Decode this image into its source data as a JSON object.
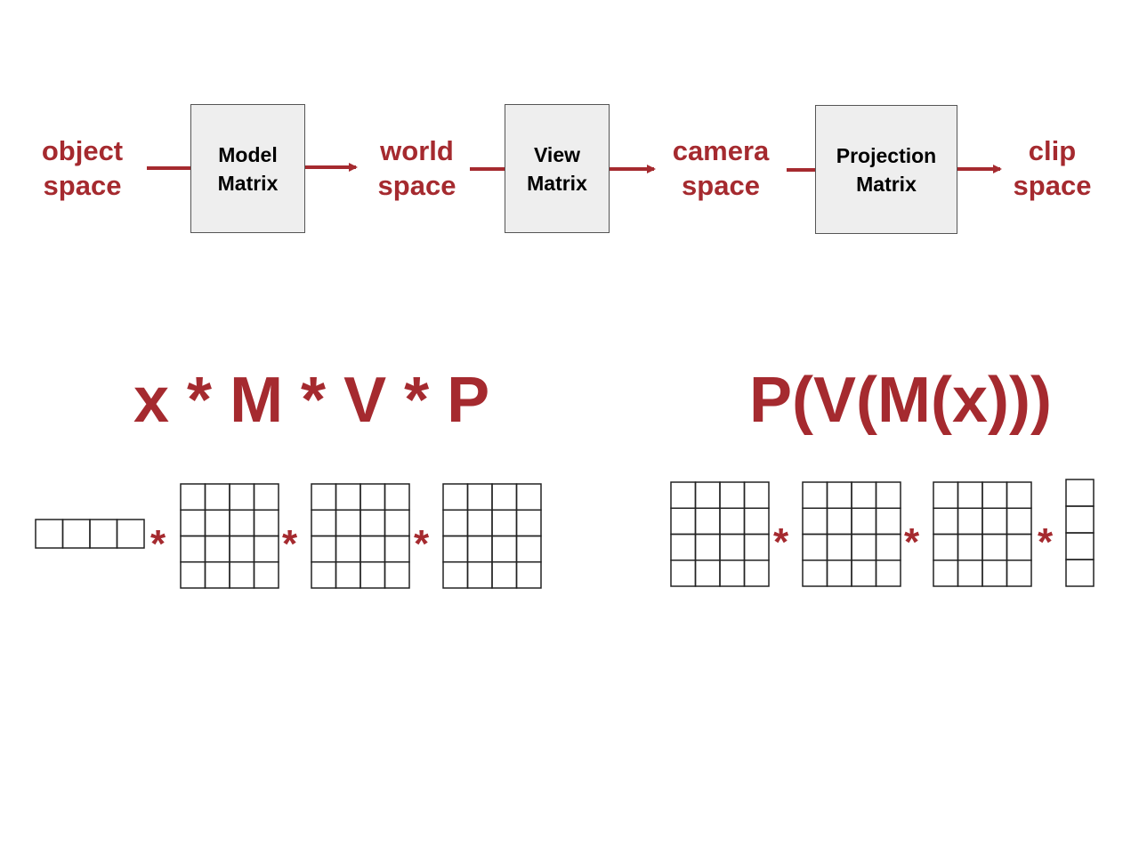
{
  "colors": {
    "accent": "#a52a2f",
    "box_fill": "#eeeeee",
    "box_border": "#555555",
    "grid_line": "#222222"
  },
  "pipeline": {
    "spaces": [
      {
        "name": "object space"
      },
      {
        "name": "world space"
      },
      {
        "name": "camera space"
      },
      {
        "name": "clip space"
      }
    ],
    "transforms": [
      {
        "name": "Model Matrix"
      },
      {
        "name": "View Matrix"
      },
      {
        "name": "Projection Matrix"
      }
    ]
  },
  "formulas": {
    "row_vector": "x * M * V * P",
    "column_vector": "P(V(M(x)))"
  },
  "operator": "*",
  "matrix_rows": {
    "left": [
      {
        "rows": 1,
        "cols": 4
      },
      {
        "rows": 4,
        "cols": 4
      },
      {
        "rows": 4,
        "cols": 4
      },
      {
        "rows": 4,
        "cols": 4
      }
    ],
    "right": [
      {
        "rows": 4,
        "cols": 4
      },
      {
        "rows": 4,
        "cols": 4
      },
      {
        "rows": 4,
        "cols": 4
      },
      {
        "rows": 4,
        "cols": 1
      }
    ]
  }
}
